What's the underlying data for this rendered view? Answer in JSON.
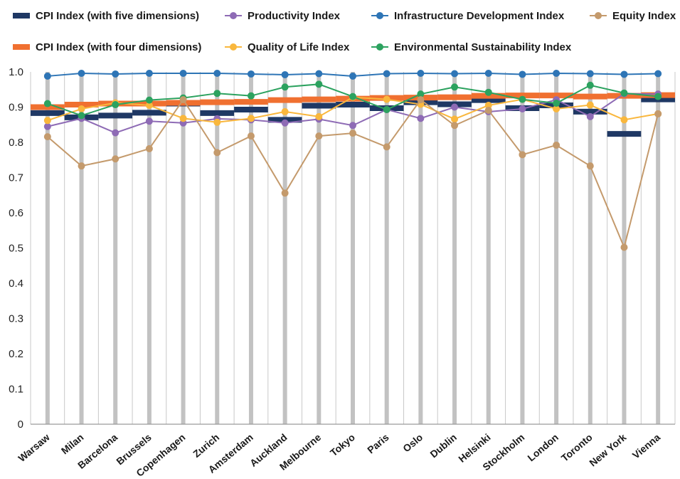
{
  "chart_data": {
    "type": "line",
    "categories": [
      "Warsaw",
      "Milan",
      "Barcelona",
      "Brussels",
      "Copenhagen",
      "Zurich",
      "Amsterdam",
      "Auckland",
      "Melbourne",
      "Tokyo",
      "Paris",
      "Oslo",
      "Dublin",
      "Helsinki",
      "Stockholm",
      "London",
      "Toronto",
      "New York",
      "Vienna"
    ],
    "ylim": [
      0,
      1
    ],
    "yticks": [
      "0",
      "0.1",
      "0.2",
      "0.3",
      "0.4",
      "0.5",
      "0.6",
      "0.7",
      "0.8",
      "0.9",
      "1.0"
    ],
    "grid": "vertical",
    "legend_position": "top",
    "series": [
      {
        "name": "CPI Index (with five dimensions)",
        "style": "step",
        "color": "#1f3864",
        "values": [
          0.883,
          0.871,
          0.876,
          0.884,
          0.91,
          0.883,
          0.893,
          0.864,
          0.904,
          0.907,
          0.897,
          0.914,
          0.908,
          0.92,
          0.897,
          0.905,
          0.887,
          0.824,
          0.922
        ]
      },
      {
        "name": "CPI Index (with four dimensions)",
        "style": "step",
        "color": "#f07030",
        "values": [
          0.9,
          0.907,
          0.91,
          0.91,
          0.912,
          0.914,
          0.915,
          0.92,
          0.922,
          0.924,
          0.926,
          0.927,
          0.928,
          0.932,
          0.933,
          0.933,
          0.93,
          0.932,
          0.934
        ]
      },
      {
        "name": "Productivity Index",
        "style": "line",
        "color": "#8e6bb5",
        "values": [
          0.845,
          0.868,
          0.827,
          0.86,
          0.855,
          0.867,
          0.864,
          0.855,
          0.866,
          0.848,
          0.893,
          0.868,
          0.9,
          0.887,
          0.895,
          0.921,
          0.873,
          0.938,
          0.937
        ]
      },
      {
        "name": "Quality of Life Index",
        "style": "line",
        "color": "#f9b73d",
        "values": [
          0.862,
          0.895,
          0.912,
          0.905,
          0.868,
          0.857,
          0.868,
          0.887,
          0.873,
          0.928,
          0.922,
          0.908,
          0.866,
          0.905,
          0.922,
          0.895,
          0.906,
          0.864,
          0.881
        ]
      },
      {
        "name": "Infrastructure Development Index",
        "style": "line",
        "color": "#2e75b6",
        "values": [
          0.988,
          0.996,
          0.994,
          0.996,
          0.996,
          0.996,
          0.994,
          0.992,
          0.995,
          0.988,
          0.995,
          0.996,
          0.995,
          0.996,
          0.993,
          0.996,
          0.995,
          0.993,
          0.995
        ]
      },
      {
        "name": "Environmental Sustainability Index",
        "style": "line",
        "color": "#2ca25f",
        "values": [
          0.91,
          0.876,
          0.907,
          0.92,
          0.926,
          0.939,
          0.932,
          0.957,
          0.965,
          0.93,
          0.893,
          0.937,
          0.957,
          0.942,
          0.922,
          0.911,
          0.962,
          0.94,
          0.93
        ]
      },
      {
        "name": "Equity Index",
        "style": "line",
        "color": "#c49a6c",
        "values": [
          0.816,
          0.733,
          0.753,
          0.782,
          0.921,
          0.771,
          0.818,
          0.656,
          0.818,
          0.826,
          0.787,
          0.921,
          0.848,
          0.891,
          0.765,
          0.792,
          0.733,
          0.502,
          0.881
        ]
      }
    ]
  }
}
